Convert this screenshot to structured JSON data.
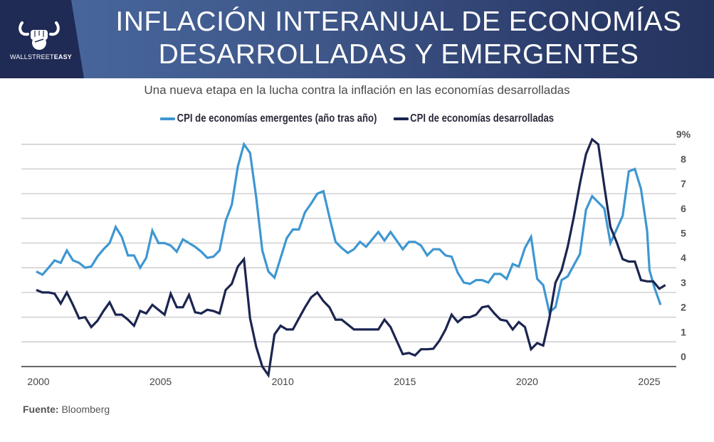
{
  "header": {
    "title_line1": "INFLACIÓN INTERANUAL DE ECONOMÍAS",
    "title_line2": "DESARROLLADAS Y EMERGENTES",
    "logo_text_light": "WALLSTREET",
    "logo_text_bold": "EASY",
    "logo_icon": "bull-fist-icon"
  },
  "subtitle": "Una nueva etapa en la lucha contra la inflación en las economías desarrolladas",
  "source": {
    "label": "Fuente:",
    "value": "Bloomberg"
  },
  "colors": {
    "emerging": "#3e97d1",
    "developed": "#1b2550",
    "grid": "#c8c8cc",
    "axis": "#555555"
  },
  "chart_data": {
    "type": "line",
    "title": "Una nueva etapa en la lucha contra la inflación en las economías desarrolladas",
    "xlabel": "",
    "ylabel": "",
    "xlim": [
      2000,
      2025.8
    ],
    "ylim": [
      0,
      9
    ],
    "y_ticks": [
      0,
      1,
      2,
      3,
      4,
      5,
      6,
      7,
      8,
      9
    ],
    "y_tick_labels": [
      "0",
      "1",
      "2",
      "3",
      "4",
      "5",
      "6",
      "7",
      "8",
      "9%"
    ],
    "y_axis_side": "right",
    "x_ticks": [
      2000,
      2005,
      2010,
      2015,
      2020,
      2025
    ],
    "x_tick_labels": [
      "2000",
      "2005",
      "2010",
      "2015",
      "2020",
      "2025"
    ],
    "grid": true,
    "legend": "top-center",
    "series": [
      {
        "name": "CPI de economías emergentes (año tras año)",
        "color": "#3e97d1",
        "points": [
          [
            2000.0,
            3.85
          ],
          [
            2000.25,
            3.72
          ],
          [
            2000.5,
            4.0
          ],
          [
            2000.75,
            4.3
          ],
          [
            2001.0,
            4.2
          ],
          [
            2001.25,
            4.7
          ],
          [
            2001.5,
            4.3
          ],
          [
            2001.75,
            4.2
          ],
          [
            2002.0,
            4.0
          ],
          [
            2002.25,
            4.05
          ],
          [
            2002.5,
            4.45
          ],
          [
            2002.75,
            4.75
          ],
          [
            2003.0,
            5.0
          ],
          [
            2003.25,
            5.65
          ],
          [
            2003.5,
            5.25
          ],
          [
            2003.75,
            4.5
          ],
          [
            2004.0,
            4.5
          ],
          [
            2004.25,
            4.0
          ],
          [
            2004.5,
            4.4
          ],
          [
            2004.75,
            5.5
          ],
          [
            2005.0,
            5.0
          ],
          [
            2005.25,
            5.0
          ],
          [
            2005.5,
            4.9
          ],
          [
            2005.75,
            4.65
          ],
          [
            2006.0,
            5.15
          ],
          [
            2006.25,
            5.0
          ],
          [
            2006.5,
            4.85
          ],
          [
            2006.75,
            4.65
          ],
          [
            2007.0,
            4.4
          ],
          [
            2007.25,
            4.45
          ],
          [
            2007.5,
            4.7
          ],
          [
            2007.75,
            5.9
          ],
          [
            2008.0,
            6.55
          ],
          [
            2008.25,
            8.1
          ],
          [
            2008.5,
            9.0
          ],
          [
            2008.75,
            8.65
          ],
          [
            2009.0,
            6.85
          ],
          [
            2009.25,
            4.7
          ],
          [
            2009.5,
            3.85
          ],
          [
            2009.75,
            3.6
          ],
          [
            2010.0,
            4.4
          ],
          [
            2010.25,
            5.2
          ],
          [
            2010.5,
            5.55
          ],
          [
            2010.75,
            5.55
          ],
          [
            2011.0,
            6.25
          ],
          [
            2011.25,
            6.6
          ],
          [
            2011.5,
            7.0
          ],
          [
            2011.75,
            7.1
          ],
          [
            2012.0,
            6.05
          ],
          [
            2012.25,
            5.05
          ],
          [
            2012.5,
            4.8
          ],
          [
            2012.75,
            4.6
          ],
          [
            2013.0,
            4.75
          ],
          [
            2013.25,
            5.05
          ],
          [
            2013.5,
            4.85
          ],
          [
            2013.75,
            5.15
          ],
          [
            2014.0,
            5.45
          ],
          [
            2014.25,
            5.1
          ],
          [
            2014.5,
            5.45
          ],
          [
            2014.75,
            5.1
          ],
          [
            2015.0,
            4.75
          ],
          [
            2015.25,
            5.05
          ],
          [
            2015.5,
            5.05
          ],
          [
            2015.75,
            4.9
          ],
          [
            2016.0,
            4.5
          ],
          [
            2016.25,
            4.75
          ],
          [
            2016.5,
            4.75
          ],
          [
            2016.75,
            4.5
          ],
          [
            2017.0,
            4.45
          ],
          [
            2017.25,
            3.8
          ],
          [
            2017.5,
            3.4
          ],
          [
            2017.75,
            3.35
          ],
          [
            2018.0,
            3.5
          ],
          [
            2018.25,
            3.5
          ],
          [
            2018.5,
            3.4
          ],
          [
            2018.75,
            3.75
          ],
          [
            2019.0,
            3.75
          ],
          [
            2019.25,
            3.55
          ],
          [
            2019.5,
            4.15
          ],
          [
            2019.75,
            4.05
          ],
          [
            2020.0,
            4.8
          ],
          [
            2020.25,
            5.25
          ],
          [
            2020.5,
            3.55
          ],
          [
            2020.75,
            3.3
          ],
          [
            2021.0,
            2.2
          ],
          [
            2021.25,
            2.4
          ],
          [
            2021.5,
            3.5
          ],
          [
            2021.75,
            3.65
          ],
          [
            2022.0,
            4.1
          ],
          [
            2022.25,
            4.55
          ],
          [
            2022.5,
            6.35
          ],
          [
            2022.75,
            6.9
          ],
          [
            2023.0,
            6.65
          ],
          [
            2023.25,
            6.4
          ],
          [
            2023.5,
            5.0
          ],
          [
            2023.75,
            5.55
          ],
          [
            2024.0,
            6.1
          ],
          [
            2024.25,
            7.9
          ],
          [
            2024.5,
            8.0
          ],
          [
            2024.75,
            7.2
          ],
          [
            2025.0,
            5.5
          ],
          [
            2025.1,
            3.9
          ],
          [
            2025.3,
            3.2
          ],
          [
            2025.55,
            2.5
          ]
        ]
      },
      {
        "name": "CPI de economías desarrolladas",
        "color": "#1b2550",
        "points": [
          [
            2000.0,
            3.1
          ],
          [
            2000.25,
            3.0
          ],
          [
            2000.5,
            3.0
          ],
          [
            2000.75,
            2.95
          ],
          [
            2001.0,
            2.55
          ],
          [
            2001.25,
            3.0
          ],
          [
            2001.5,
            2.5
          ],
          [
            2001.75,
            1.95
          ],
          [
            2002.0,
            2.0
          ],
          [
            2002.25,
            1.6
          ],
          [
            2002.5,
            1.85
          ],
          [
            2002.75,
            2.25
          ],
          [
            2003.0,
            2.6
          ],
          [
            2003.25,
            2.1
          ],
          [
            2003.5,
            2.1
          ],
          [
            2003.75,
            1.9
          ],
          [
            2004.0,
            1.65
          ],
          [
            2004.25,
            2.25
          ],
          [
            2004.5,
            2.15
          ],
          [
            2004.75,
            2.5
          ],
          [
            2005.0,
            2.3
          ],
          [
            2005.25,
            2.1
          ],
          [
            2005.5,
            2.95
          ],
          [
            2005.75,
            2.4
          ],
          [
            2006.0,
            2.4
          ],
          [
            2006.25,
            2.9
          ],
          [
            2006.5,
            2.2
          ],
          [
            2006.75,
            2.15
          ],
          [
            2007.0,
            2.3
          ],
          [
            2007.25,
            2.25
          ],
          [
            2007.5,
            2.15
          ],
          [
            2007.75,
            3.1
          ],
          [
            2008.0,
            3.35
          ],
          [
            2008.25,
            4.05
          ],
          [
            2008.5,
            4.35
          ],
          [
            2008.75,
            1.95
          ],
          [
            2009.0,
            0.8
          ],
          [
            2009.25,
            0.0
          ],
          [
            2009.5,
            -0.35
          ],
          [
            2009.75,
            1.3
          ],
          [
            2010.0,
            1.65
          ],
          [
            2010.25,
            1.5
          ],
          [
            2010.5,
            1.5
          ],
          [
            2010.75,
            1.95
          ],
          [
            2011.0,
            2.4
          ],
          [
            2011.25,
            2.8
          ],
          [
            2011.5,
            3.0
          ],
          [
            2011.75,
            2.65
          ],
          [
            2012.0,
            2.4
          ],
          [
            2012.25,
            1.9
          ],
          [
            2012.5,
            1.9
          ],
          [
            2012.75,
            1.7
          ],
          [
            2013.0,
            1.5
          ],
          [
            2013.25,
            1.5
          ],
          [
            2013.5,
            1.5
          ],
          [
            2013.75,
            1.5
          ],
          [
            2014.0,
            1.5
          ],
          [
            2014.25,
            1.9
          ],
          [
            2014.5,
            1.6
          ],
          [
            2014.75,
            1.05
          ],
          [
            2015.0,
            0.5
          ],
          [
            2015.25,
            0.55
          ],
          [
            2015.5,
            0.45
          ],
          [
            2015.75,
            0.7
          ],
          [
            2016.0,
            0.7
          ],
          [
            2016.25,
            0.72
          ],
          [
            2016.5,
            1.05
          ],
          [
            2016.75,
            1.5
          ],
          [
            2017.0,
            2.1
          ],
          [
            2017.25,
            1.8
          ],
          [
            2017.5,
            2.0
          ],
          [
            2017.75,
            2.0
          ],
          [
            2018.0,
            2.1
          ],
          [
            2018.25,
            2.4
          ],
          [
            2018.5,
            2.45
          ],
          [
            2018.75,
            2.15
          ],
          [
            2019.0,
            1.9
          ],
          [
            2019.25,
            1.85
          ],
          [
            2019.5,
            1.5
          ],
          [
            2019.75,
            1.8
          ],
          [
            2020.0,
            1.6
          ],
          [
            2020.25,
            0.7
          ],
          [
            2020.5,
            0.95
          ],
          [
            2020.75,
            0.85
          ],
          [
            2021.0,
            1.95
          ],
          [
            2021.25,
            3.4
          ],
          [
            2021.5,
            3.9
          ],
          [
            2021.75,
            4.85
          ],
          [
            2022.0,
            6.05
          ],
          [
            2022.25,
            7.4
          ],
          [
            2022.5,
            8.6
          ],
          [
            2022.75,
            9.2
          ],
          [
            2023.0,
            9.0
          ],
          [
            2023.25,
            7.3
          ],
          [
            2023.5,
            5.65
          ],
          [
            2023.75,
            5.05
          ],
          [
            2024.0,
            4.35
          ],
          [
            2024.25,
            4.25
          ],
          [
            2024.5,
            4.25
          ],
          [
            2024.75,
            3.5
          ],
          [
            2025.0,
            3.45
          ],
          [
            2025.25,
            3.45
          ],
          [
            2025.5,
            3.15
          ],
          [
            2025.75,
            3.3
          ]
        ]
      }
    ]
  }
}
